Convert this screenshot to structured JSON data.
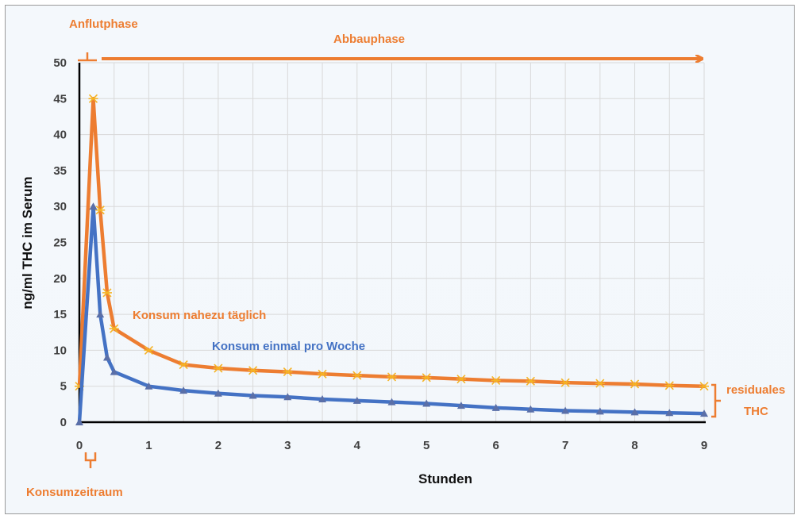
{
  "colors": {
    "orange": "#ED7D31",
    "blue": "#4472C4",
    "marker_orange": "#F5B325",
    "marker_blue": "#5A6FA8",
    "grid": "#d9d9d9",
    "axis": "#000000"
  },
  "annotations": {
    "anflutphase": "Anflutphase",
    "abbauphase": "Abbauphase",
    "konsumzeitraum": "Konsumzeitraum",
    "residuales_line1": "residuales",
    "residuales_line2": "THC",
    "series1_label": "Konsum nahezu täglich",
    "series2_label": "Konsum einmal pro Woche"
  },
  "chart_data": {
    "type": "line",
    "title": "",
    "xlabel": "Stunden",
    "ylabel": "ng/ml THC im Serum",
    "xlim": [
      0,
      9
    ],
    "ylim": [
      0,
      50
    ],
    "x_ticks": [
      0,
      1,
      2,
      3,
      4,
      5,
      6,
      7,
      8,
      9
    ],
    "y_ticks": [
      0,
      5,
      10,
      15,
      20,
      25,
      30,
      35,
      40,
      45,
      50
    ],
    "x_minor_grid": [
      0.5,
      1.5,
      2.5,
      3.5,
      4.5,
      5.5,
      6.5,
      7.5,
      8.5
    ],
    "grid": true,
    "legend": "none",
    "series": [
      {
        "name": "Konsum nahezu täglich",
        "color": "#ED7D31",
        "x": [
          0,
          0.2,
          0.3,
          0.4,
          0.5,
          1,
          1.5,
          2,
          2.5,
          3,
          3.5,
          4,
          4.5,
          5,
          5.5,
          6,
          6.5,
          7,
          7.5,
          8,
          8.5,
          9
        ],
        "y": [
          5,
          45,
          29.5,
          18,
          13,
          10,
          8,
          7.5,
          7.2,
          7,
          6.7,
          6.5,
          6.3,
          6.2,
          6,
          5.8,
          5.7,
          5.5,
          5.4,
          5.3,
          5.1,
          5
        ]
      },
      {
        "name": "Konsum einmal pro Woche",
        "color": "#4472C4",
        "x": [
          0,
          0.2,
          0.3,
          0.4,
          0.5,
          1,
          1.5,
          2,
          2.5,
          3,
          3.5,
          4,
          4.5,
          5,
          5.5,
          6,
          6.5,
          7,
          7.5,
          8,
          8.5,
          9
        ],
        "y": [
          0,
          30,
          15,
          9,
          7,
          5,
          4.4,
          4,
          3.7,
          3.5,
          3.2,
          3,
          2.8,
          2.6,
          2.3,
          2,
          1.8,
          1.6,
          1.5,
          1.4,
          1.3,
          1.2
        ]
      }
    ]
  }
}
